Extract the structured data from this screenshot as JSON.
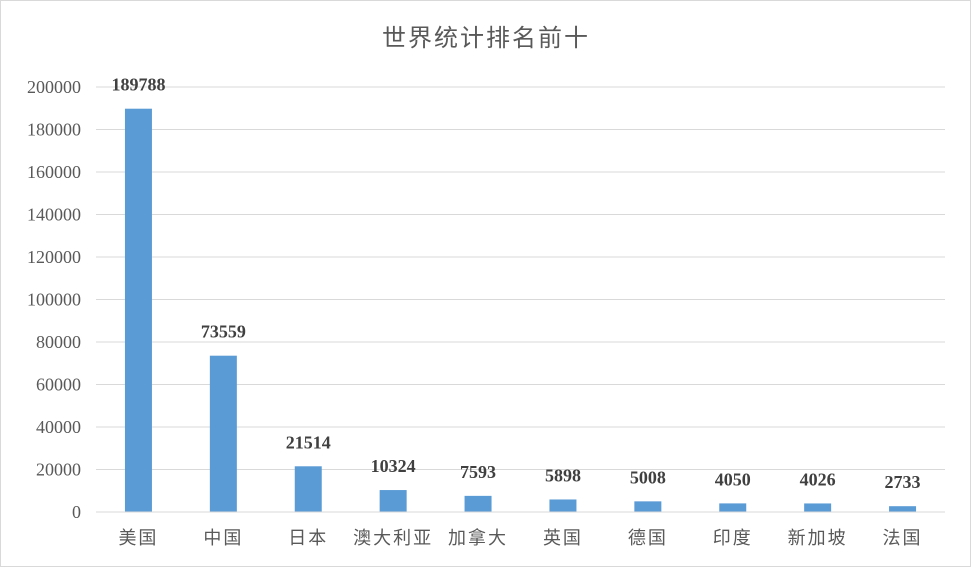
{
  "chart_data": {
    "type": "bar",
    "title": "世界统计排名前十",
    "xlabel": "",
    "ylabel": "",
    "categories": [
      "美国",
      "中国",
      "日本",
      "澳大利亚",
      "加拿大",
      "英国",
      "德国",
      "印度",
      "新加坡",
      "法国"
    ],
    "values": [
      189788,
      73559,
      21514,
      10324,
      7593,
      5898,
      5008,
      4050,
      4026,
      2733
    ],
    "ylim": [
      0,
      200000
    ],
    "yticks": [
      0,
      20000,
      40000,
      60000,
      80000,
      100000,
      120000,
      140000,
      160000,
      180000,
      200000
    ],
    "grid": true,
    "legend": "none",
    "bar_color": "#5b9bd5",
    "data_labels": true
  }
}
